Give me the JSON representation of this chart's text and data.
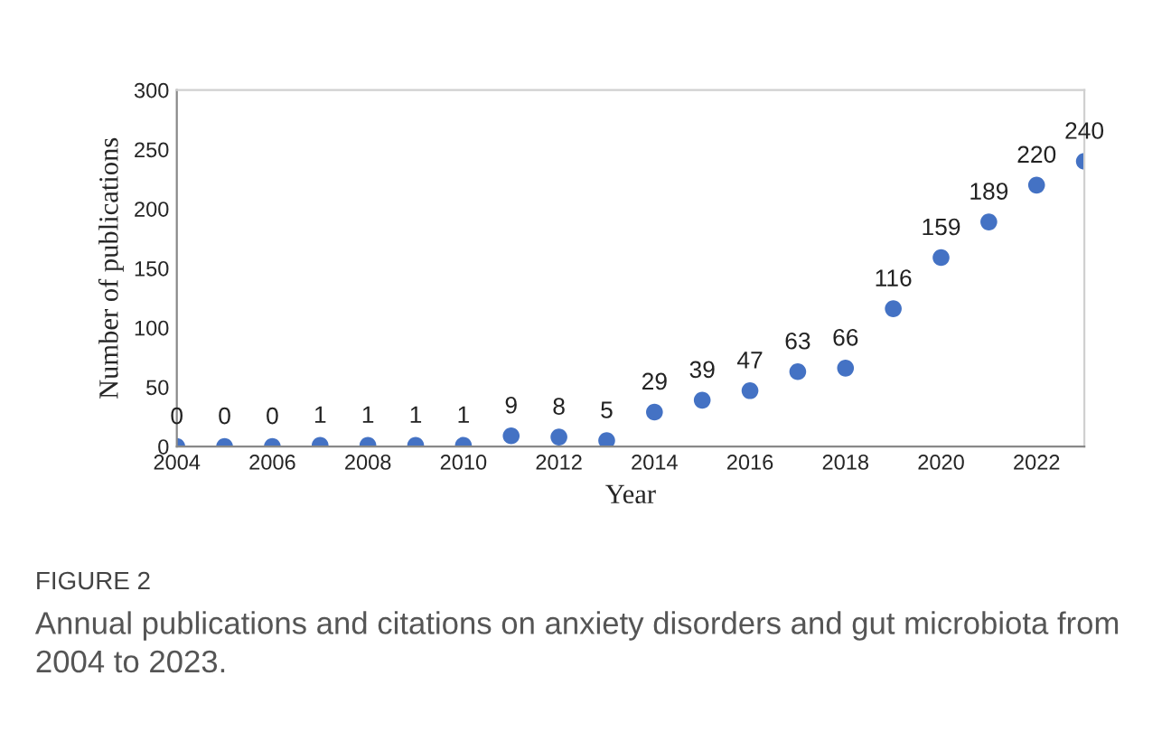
{
  "chart_data": {
    "type": "scatter",
    "xlabel": "Year",
    "ylabel": "Number of publications",
    "x": [
      2004,
      2005,
      2006,
      2007,
      2008,
      2009,
      2010,
      2011,
      2012,
      2013,
      2014,
      2015,
      2016,
      2017,
      2018,
      2019,
      2020,
      2021,
      2022,
      2023
    ],
    "series": [
      {
        "color": "#4472c4",
        "values": [
          0,
          0,
          0,
          1,
          1,
          1,
          1,
          9,
          8,
          5,
          29,
          39,
          47,
          63,
          66,
          116,
          159,
          189,
          220,
          240
        ]
      }
    ],
    "xlim": [
      2004,
      2023
    ],
    "xticks": [
      2004,
      2006,
      2008,
      2010,
      2012,
      2014,
      2016,
      2018,
      2020,
      2022
    ],
    "ylim": [
      0,
      300
    ],
    "yticks": [
      0,
      50,
      100,
      150,
      200,
      250,
      300
    ],
    "data_labels": true,
    "grid": false,
    "legend": false,
    "marker": "circle",
    "annotations": [
      "FIGURE 2",
      "Annual publications and citations on anxiety disorders and gut microbiota from 2004 to 2023."
    ]
  }
}
